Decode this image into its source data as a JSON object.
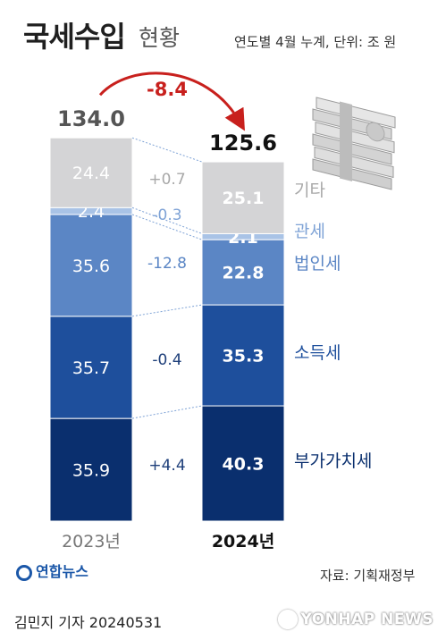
{
  "header": {
    "title_main": "국세수입",
    "title_sub": "현황",
    "unit_note": "연도별 4월 누계, 단위: 조 원"
  },
  "chart_data": {
    "type": "bar",
    "stacked": true,
    "categories": [
      "2023년",
      "2024년"
    ],
    "totals": [
      "134.0",
      "125.6"
    ],
    "difference_label": "-8.4",
    "series": [
      {
        "name": "부가가치세",
        "values": [
          35.9,
          40.3
        ],
        "labels": [
          "35.9",
          "40.3"
        ],
        "change": "+4.4",
        "color": "#0a2f6e"
      },
      {
        "name": "소득세",
        "values": [
          35.7,
          35.3
        ],
        "labels": [
          "35.7",
          "35.3"
        ],
        "change": "-0.4",
        "color": "#1e4f9c"
      },
      {
        "name": "법인세",
        "values": [
          35.6,
          22.8
        ],
        "labels": [
          "35.6",
          "22.8"
        ],
        "change": "-12.8",
        "color": "#5b86c5"
      },
      {
        "name": "관세",
        "values": [
          2.4,
          2.1
        ],
        "labels": [
          "2.4",
          "2.1"
        ],
        "change": "-0.3",
        "color": "#a9c3e6"
      },
      {
        "name": "기타",
        "values": [
          24.4,
          25.1
        ],
        "labels": [
          "24.4",
          "25.1"
        ],
        "change": "+0.7",
        "color": "#d4d4d6"
      }
    ],
    "series_label_colors": {
      "부가가치세": "#0a2f6e",
      "소득세": "#1e4f9c",
      "법인세": "#5b86c5",
      "관세": "#7fa3d6",
      "기타": "#a8a8a8"
    },
    "change_label_colors": {
      "부가가치세": "#1e3f7a",
      "소득세": "#1e3f7a",
      "법인세": "#5b86c5",
      "관세": "#7fa3d6",
      "기타": "#a8a8a8"
    },
    "accent": "#c8201d"
  },
  "footer": {
    "logo_text": "연합뉴스",
    "source": "자료: 기획재정부",
    "byline": "김민지 기자  20240531",
    "watermark": "YONHAP NEWS"
  },
  "illustration": {
    "icon": "money-stack-icon"
  }
}
